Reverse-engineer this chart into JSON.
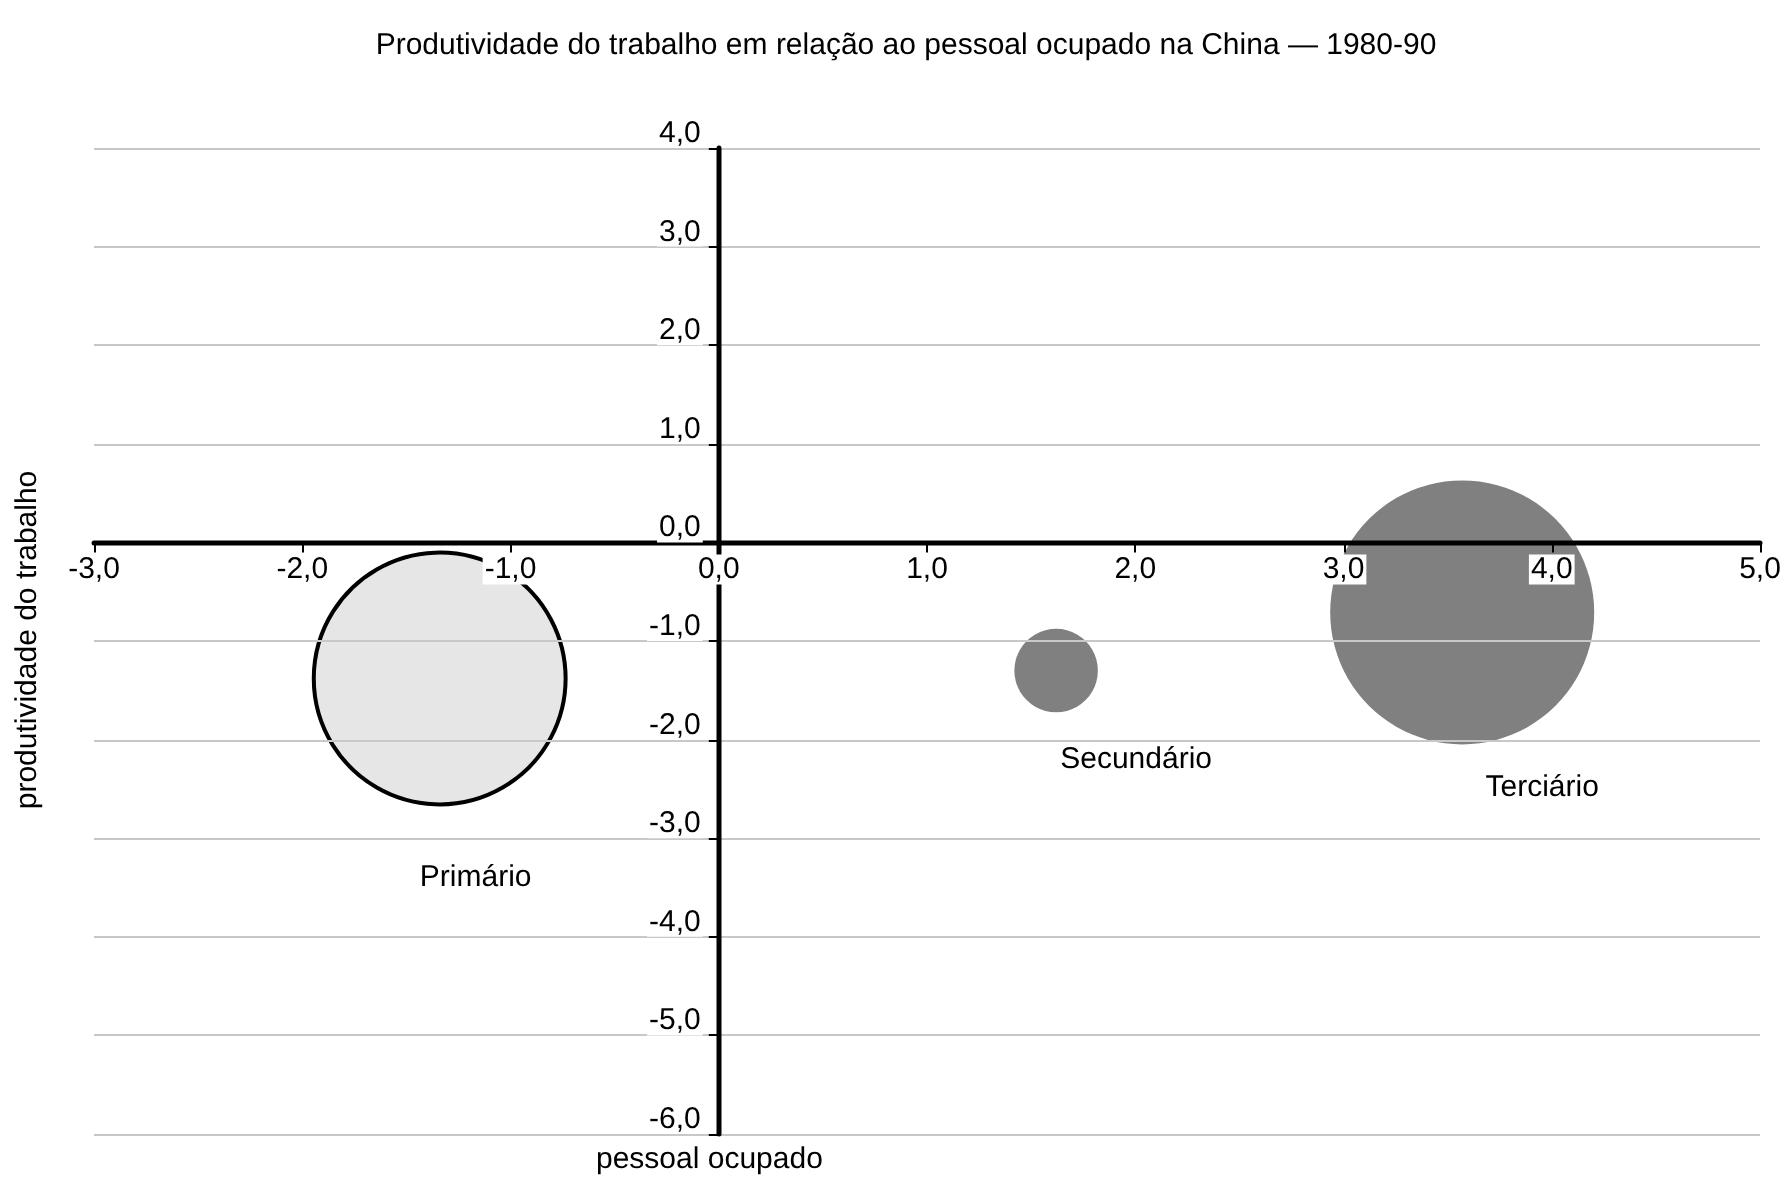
{
  "chart_data": {
    "type": "bubble",
    "title": "Produtividade do trabalho em relação ao pessoal ocupado na China — 1980-90",
    "xlabel": "pessoal ocupado",
    "ylabel": "produtividade do trabalho",
    "series": [
      {
        "name": "Primário",
        "color": "#e6e6e6",
        "x": [
          -1.34
        ],
        "values": [
          -1.38
        ],
        "sizes": [
          0.91
        ]
      },
      {
        "name": "Secundário",
        "color": "#808080",
        "x": [
          1.62
        ],
        "values": [
          -1.3
        ],
        "sizes": [
          0.1
        ]
      },
      {
        "name": "Terciário",
        "color": "#808080",
        "x": [
          3.57
        ],
        "values": [
          -0.71
        ],
        "sizes": [
          1
        ]
      }
    ],
    "xlim": [
      -3,
      5
    ],
    "xticks": [
      {
        "value": -3,
        "label": "-3,0"
      },
      {
        "value": -2,
        "label": "-2,0"
      },
      {
        "value": -1,
        "label": "-1,0"
      },
      {
        "value": 0,
        "label": "0,0"
      },
      {
        "value": 1,
        "label": "1,0"
      },
      {
        "value": 2,
        "label": "2,0"
      },
      {
        "value": 3,
        "label": "3,0"
      },
      {
        "value": 4,
        "label": "4,0"
      },
      {
        "value": 5,
        "label": "5,0"
      }
    ],
    "ylim": [
      -6,
      4
    ],
    "yticks": [
      {
        "value": -6,
        "label": "-6,0"
      },
      {
        "value": -5,
        "label": "-5,0"
      },
      {
        "value": -4,
        "label": "-4,0"
      },
      {
        "value": -3,
        "label": "-3,0"
      },
      {
        "value": -2,
        "label": "-2,0"
      },
      {
        "value": -1,
        "label": "-1,0"
      },
      {
        "value": 0,
        "label": "0,0"
      },
      {
        "value": 1,
        "label": "1,0"
      },
      {
        "value": 2,
        "label": "2,0"
      },
      {
        "value": 3,
        "label": "3,0"
      },
      {
        "value": 4,
        "label": "4,0"
      }
    ],
    "grid": "y",
    "legend": false
  }
}
